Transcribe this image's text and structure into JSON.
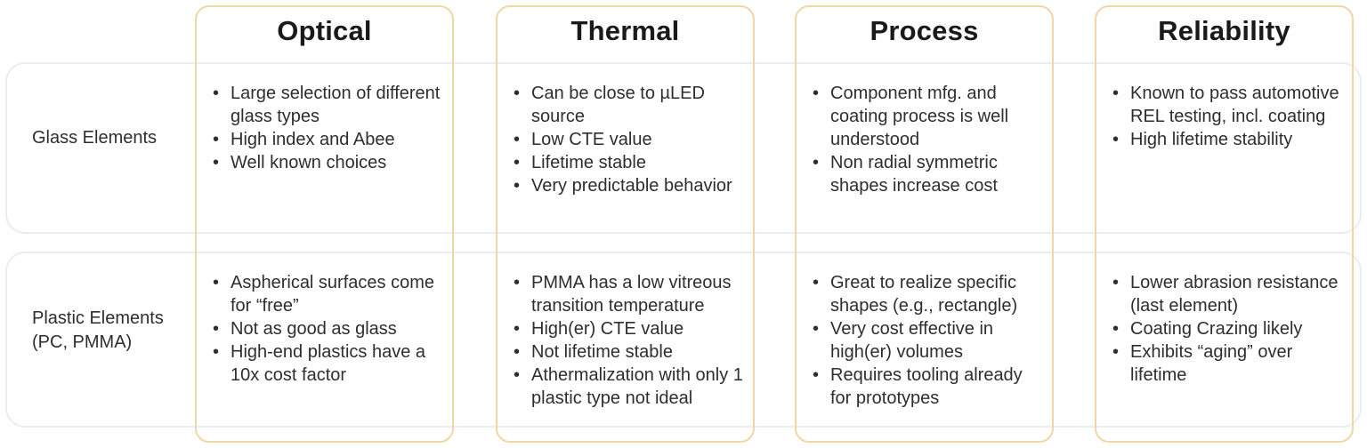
{
  "colors": {
    "column_border": "#EFD7A4",
    "row_border": "#E9EDF3",
    "header_text": "#1a1a1a",
    "body_text": "#2e2e2e",
    "background": "#ffffff"
  },
  "matrix": {
    "columns": [
      "Optical",
      "Thermal",
      "Process",
      "Reliability"
    ],
    "rows": [
      {
        "label": "Glass Elements",
        "cells": [
          {
            "bullets": [
              "Large selection of different glass types",
              "High index and Abee",
              "Well known choices"
            ]
          },
          {
            "bullets": [
              "Can be close to µLED source",
              "Low CTE value",
              "Lifetime stable",
              "Very predictable behavior"
            ]
          },
          {
            "bullets": [
              "Component mfg. and coating process is well understood",
              "Non radial symmetric shapes increase cost"
            ]
          },
          {
            "bullets": [
              "Known to pass automotive REL testing, incl. coating",
              "High lifetime stability"
            ]
          }
        ]
      },
      {
        "label": "Plastic Elements (PC, PMMA)",
        "cells": [
          {
            "bullets": [
              "Aspherical surfaces come for “free”",
              "Not as good as glass",
              "High-end plastics have a 10x cost factor"
            ]
          },
          {
            "bullets": [
              "PMMA has a low vitreous transition temperature",
              "High(er) CTE value",
              "Not lifetime stable",
              "Athermalization with only 1 plastic type not ideal"
            ]
          },
          {
            "bullets": [
              "Great to realize specific shapes (e.g., rectangle)",
              "Very cost effective in high(er) volumes",
              "Requires tooling already for prototypes"
            ]
          },
          {
            "bullets": [
              "Lower abrasion resistance (last element)",
              "Coating Crazing likely",
              "Exhibits “aging” over lifetime"
            ]
          }
        ]
      }
    ]
  }
}
